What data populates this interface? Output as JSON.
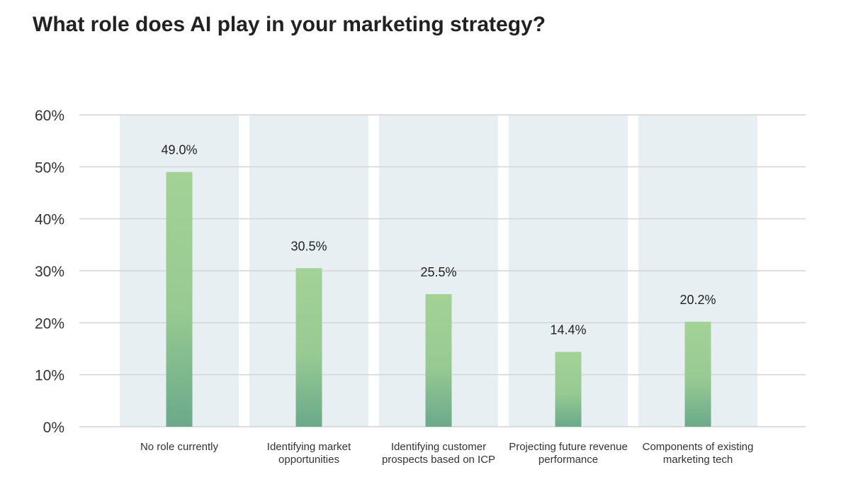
{
  "title": "What role does AI play in your marketing strategy?",
  "chart_data": {
    "type": "bar",
    "title": "What role does AI play in your marketing strategy?",
    "categories": [
      "No role currently",
      "Identifying market opportunities",
      "Identifying customer prospects based on ICP",
      "Projecting future revenue performance",
      "Components of existing marketing tech"
    ],
    "values": [
      49.0,
      30.5,
      25.5,
      14.4,
      20.2
    ],
    "value_labels": [
      "49.0%",
      "30.5%",
      "25.5%",
      "14.4%",
      "20.2%"
    ],
    "y_ticks": [
      "0%",
      "10%",
      "20%",
      "30%",
      "40%",
      "50%",
      "60%"
    ],
    "ylim": [
      0,
      60
    ],
    "grid": true,
    "legend": "none",
    "colors": {
      "bar_top": "#a3d297",
      "bar_bottom": "#6aa98a",
      "panel": "#e8eff3",
      "grid": "#d4d4d4"
    }
  }
}
